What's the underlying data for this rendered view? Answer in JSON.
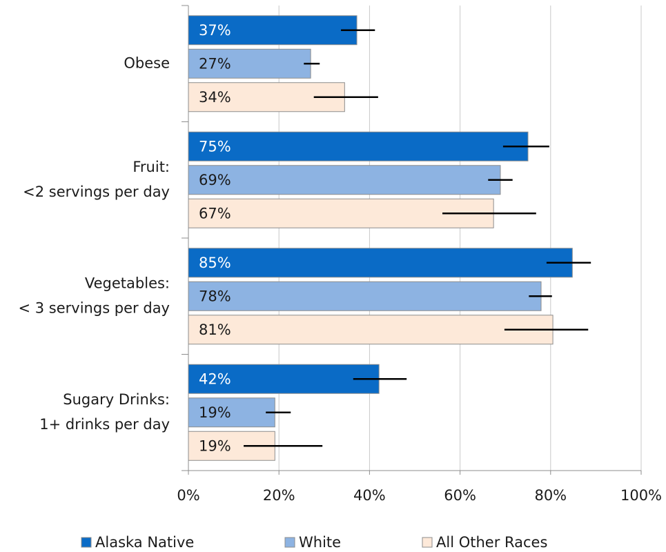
{
  "chart_data": {
    "type": "bar",
    "orientation": "horizontal",
    "categories": [
      [
        "Obese"
      ],
      [
        "Fruit:",
        "<2 servings per day"
      ],
      [
        "Vegetables:",
        "< 3 servings per day"
      ],
      [
        "Sugary Drinks:",
        "1+ drinks per day"
      ]
    ],
    "series": [
      {
        "name": "Alaska Native",
        "color": "#0a6bc6",
        "label_color": "#ffffff",
        "values": [
          37.2,
          75.0,
          84.8,
          42.1
        ],
        "value_labels": [
          "37%",
          "75%",
          "85%",
          "42%"
        ],
        "error_minus": [
          3.5,
          5.5,
          5.7,
          5.7
        ],
        "error_plus": [
          4.0,
          4.7,
          4.1,
          6.1
        ]
      },
      {
        "name": "White",
        "color": "#8db3e2",
        "label_color": "#1a1a1a",
        "values": [
          27.0,
          68.9,
          77.9,
          19.1
        ],
        "value_labels": [
          "27%",
          "69%",
          "78%",
          "19%"
        ],
        "error_minus": [
          1.5,
          2.7,
          2.7,
          2.0
        ],
        "error_plus": [
          2.0,
          2.7,
          2.4,
          3.5
        ]
      },
      {
        "name": "All Other Races",
        "color": "#fde9d9",
        "label_color": "#1a1a1a",
        "values": [
          34.5,
          67.4,
          80.5,
          19.1
        ],
        "value_labels": [
          "34%",
          "67%",
          "81%",
          "19%"
        ],
        "error_minus": [
          6.8,
          11.3,
          10.7,
          6.9
        ],
        "error_plus": [
          7.4,
          9.4,
          7.8,
          10.5
        ]
      }
    ],
    "xlim": [
      0,
      100
    ],
    "xticks": [
      {
        "value": 0,
        "label": "0%"
      },
      {
        "value": 20,
        "label": "20%"
      },
      {
        "value": 40,
        "label": "40%"
      },
      {
        "value": 60,
        "label": "60%"
      },
      {
        "value": 80,
        "label": "80%"
      },
      {
        "value": 100,
        "label": "100%"
      }
    ],
    "grid": true,
    "legend": "bottom"
  }
}
